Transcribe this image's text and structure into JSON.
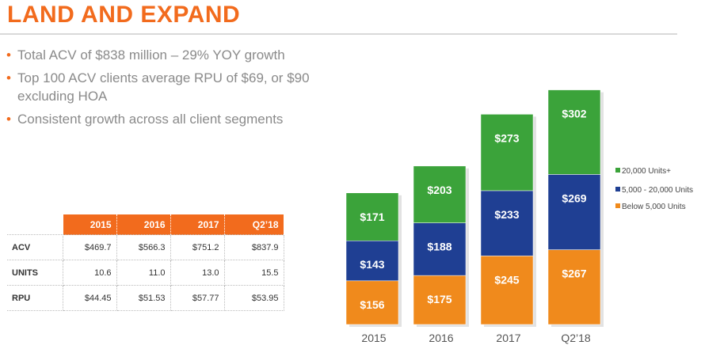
{
  "title": "LAND AND EXPAND",
  "bullets": [
    "Total ACV of $838 million – 29% YOY growth",
    "Top 100 ACV clients average RPU of $69, or $90 excluding HOA",
    "Consistent growth across all client segments"
  ],
  "table": {
    "headers": [
      "2015",
      "2016",
      "2017",
      "Q2’18"
    ],
    "rows": [
      {
        "label": "ACV",
        "values": [
          "$469.7",
          "$566.3",
          "$751.2",
          "$837.9"
        ]
      },
      {
        "label": "UNITS",
        "values": [
          "10.6",
          "11.0",
          "13.0",
          "15.5"
        ]
      },
      {
        "label": "RPU",
        "values": [
          "$44.45",
          "$51.53",
          "$57.77",
          "$53.95"
        ]
      }
    ]
  },
  "chart_data": {
    "type": "bar",
    "stacked": true,
    "categories": [
      "2015",
      "2016",
      "2017",
      "Q2’18"
    ],
    "series": [
      {
        "name": "Below 5,000 Units",
        "values": [
          156,
          175,
          245,
          267
        ],
        "labels": [
          "$156",
          "$175",
          "$245",
          "$267"
        ],
        "color": "#f08a1c"
      },
      {
        "name": "5,000 - 20,000 Units",
        "values": [
          143,
          188,
          233,
          269
        ],
        "labels": [
          "$143",
          "$188",
          "$233",
          "$269"
        ],
        "color": "#1f3f93"
      },
      {
        "name": "20,000 Units+",
        "values": [
          171,
          203,
          273,
          302
        ],
        "labels": [
          "$171",
          "$203",
          "$273",
          "$302"
        ],
        "color": "#3ba33a"
      }
    ],
    "legend_order": [
      "20,000 Units+",
      "5,000 - 20,000 Units",
      "Below 5,000 Units"
    ],
    "legend_position": "right",
    "grid": false
  },
  "colors": {
    "accent": "#f26b1d",
    "bullet_text": "#8a8a8a"
  }
}
